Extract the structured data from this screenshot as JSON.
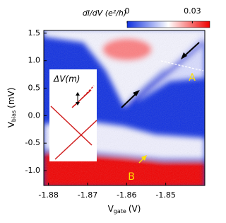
{
  "chart_data": {
    "type": "heatmap",
    "xlabel": {
      "symbol": "V",
      "subscript": "gate",
      "unit": "(V)"
    },
    "ylabel": {
      "symbol": "V",
      "subscript": "bias",
      "unit": "(mV)"
    },
    "colorbar_label": "dI/dV (e²/h)",
    "xlim": [
      -1.8812,
      -1.84
    ],
    "ylim": [
      -1.27,
      1.55
    ],
    "xticks": [
      -1.88,
      -1.87,
      -1.86,
      -1.85
    ],
    "yticks": [
      1.5,
      {
        "value": 1,
        "label": "1.0"
      },
      0.5,
      {
        "value": 0,
        "label": "0.0"
      },
      -0.5,
      {
        "value": -1,
        "label": "-1.0"
      }
    ],
    "clim": [
      0,
      0.038
    ],
    "cticks": [
      0,
      0.03
    ],
    "colors": [
      "#1030e0",
      "#ffffff",
      "#f00000"
    ],
    "annotations": {
      "a": "A",
      "b": "B",
      "inset": "ΔV(m)"
    }
  }
}
